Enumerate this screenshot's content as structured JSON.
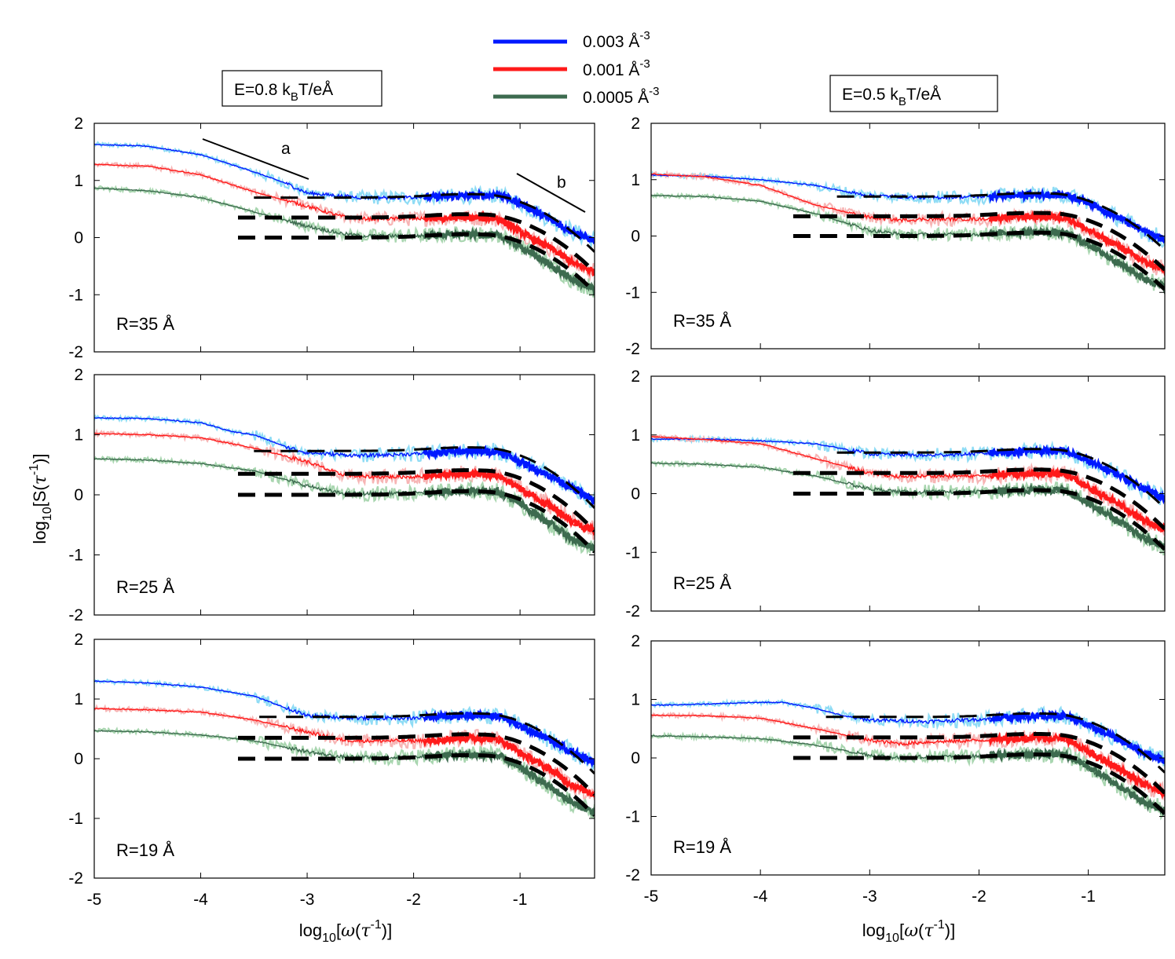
{
  "figure": {
    "ylabel": "log10[S(τ-1)]",
    "ylabel_base": "log",
    "ylabel_sub": "10",
    "ylabel_rest_a": "[S(",
    "ylabel_tau": "τ",
    "ylabel_sup": "-1",
    "ylabel_rest_b": ")]",
    "xlabel": "log10[ω(τ-1)]",
    "xlabel_base": "log",
    "xlabel_sub": "10",
    "xlabel_rest_a": "[",
    "xlabel_omega": "ω",
    "xlabel_paren": "(",
    "xlabel_tau": "τ",
    "xlabel_sup": "-1",
    "xlabel_rest_b": ")]",
    "columns": [
      {
        "field_pre": "E=0.8 k",
        "field_sub": "B",
        "field_post": "T/eÅ"
      },
      {
        "field_pre": "E=0.5 k",
        "field_sub": "B",
        "field_post": "T/eÅ"
      }
    ],
    "annotations": {
      "a": "a",
      "b": "b"
    }
  },
  "legend": [
    {
      "label": "0.003 Å",
      "sup": "-3",
      "color": "#0019ff"
    },
    {
      "label": "0.001 Å",
      "sup": "-3",
      "color": "#ff1a1a"
    },
    {
      "label": "0.0005 Å",
      "sup": "-3",
      "color": "#3d6b4f"
    }
  ],
  "colors": {
    "blue": "#0019ff",
    "blue_light": "#8fdcf5",
    "red": "#ff1a1a",
    "red_light": "#f7b5b5",
    "green": "#3d6b4f",
    "green_light": "#a9d6b0",
    "fit": "#000000"
  },
  "chart_data": [
    {
      "type": "line",
      "panel": "E=0.8, R=35 Å",
      "label": "R=35 Å",
      "xlim": [
        -5,
        -0.3
      ],
      "ylim": [
        -2,
        2
      ],
      "xticks": [
        -5,
        -4,
        -3,
        -2,
        -1
      ],
      "yticks": [
        -2,
        -1,
        0,
        1,
        2
      ],
      "series": [
        {
          "name": "0.003 Å-3",
          "x": [
            -5,
            -4.5,
            -4,
            -3.5,
            -3.2,
            -3.0,
            -2.5,
            -2,
            -1.5,
            -1.2,
            -1.0,
            -0.7,
            -0.5,
            -0.3
          ],
          "y": [
            1.63,
            1.6,
            1.45,
            1.15,
            0.95,
            0.78,
            0.7,
            0.7,
            0.73,
            0.75,
            0.6,
            0.3,
            0.1,
            -0.05
          ],
          "fit_y": 0.7,
          "fit_from": -3.5
        },
        {
          "name": "0.001 Å-3",
          "x": [
            -5,
            -4.5,
            -4,
            -3.5,
            -3.0,
            -2.7,
            -2.5,
            -2,
            -1.5,
            -1.2,
            -1.0,
            -0.7,
            -0.5,
            -0.3
          ],
          "y": [
            1.28,
            1.25,
            1.1,
            0.8,
            0.55,
            0.38,
            0.33,
            0.33,
            0.35,
            0.33,
            0.1,
            -0.2,
            -0.45,
            -0.6
          ],
          "fit_y": 0.35,
          "fit_from": -3.65
        },
        {
          "name": "0.0005 Å-3",
          "x": [
            -5,
            -4.5,
            -4,
            -3.5,
            -3.0,
            -2.7,
            -2.5,
            -2,
            -1.5,
            -1.2,
            -1.0,
            -0.7,
            -0.5,
            -0.3
          ],
          "y": [
            0.87,
            0.82,
            0.7,
            0.45,
            0.2,
            0.08,
            0.03,
            0.03,
            0.06,
            0.04,
            -0.15,
            -0.5,
            -0.75,
            -0.9
          ],
          "fit_y": 0.0,
          "fit_from": -3.65
        }
      ]
    },
    {
      "type": "line",
      "panel": "E=0.5, R=35 Å",
      "label": "R=35 Å",
      "xlim": [
        -5,
        -0.3
      ],
      "ylim": [
        -2,
        2
      ],
      "xticks": [
        -5,
        -4,
        -3,
        -2,
        -1
      ],
      "yticks": [
        -2,
        -1,
        0,
        1,
        2
      ],
      "series": [
        {
          "name": "0.003 Å-3",
          "x": [
            -5,
            -4.5,
            -4,
            -3.5,
            -3.2,
            -3.0,
            -2.5,
            -2,
            -1.5,
            -1.2,
            -1.0,
            -0.7,
            -0.5,
            -0.3
          ],
          "y": [
            1.08,
            1.06,
            1.0,
            0.9,
            0.78,
            0.72,
            0.68,
            0.7,
            0.73,
            0.73,
            0.6,
            0.3,
            0.1,
            -0.07
          ],
          "fit_y": 0.7,
          "fit_from": -3.3
        },
        {
          "name": "0.001 Å-3",
          "x": [
            -5,
            -4.5,
            -4,
            -3.5,
            -3.0,
            -2.7,
            -2.5,
            -2,
            -1.5,
            -1.2,
            -1.0,
            -0.7,
            -0.5,
            -0.3
          ],
          "y": [
            1.1,
            1.05,
            0.9,
            0.55,
            0.33,
            0.28,
            0.3,
            0.3,
            0.35,
            0.33,
            0.1,
            -0.2,
            -0.45,
            -0.6
          ],
          "fit_y": 0.35,
          "fit_from": -3.7
        },
        {
          "name": "0.0005 Å-3",
          "x": [
            -5,
            -4.5,
            -4,
            -3.5,
            -3.0,
            -2.7,
            -2.5,
            -2,
            -1.5,
            -1.2,
            -1.0,
            -0.7,
            -0.5,
            -0.3
          ],
          "y": [
            0.72,
            0.7,
            0.62,
            0.4,
            0.1,
            0.03,
            0.03,
            0.03,
            0.07,
            0.05,
            -0.15,
            -0.5,
            -0.75,
            -0.9
          ],
          "fit_y": 0.0,
          "fit_from": -3.7
        }
      ]
    },
    {
      "type": "line",
      "panel": "E=0.8, R=25 Å",
      "label": "R=25 Å",
      "xlim": [
        -5,
        -0.3
      ],
      "ylim": [
        -2,
        2
      ],
      "xticks": [
        -5,
        -4,
        -3,
        -2,
        -1
      ],
      "yticks": [
        -2,
        -1,
        0,
        1,
        2
      ],
      "series": [
        {
          "name": "0.003 Å-3",
          "x": [
            -5,
            -4.5,
            -4,
            -3.7,
            -3.5,
            -3.2,
            -3.0,
            -2.5,
            -2,
            -1.5,
            -1.2,
            -1.0,
            -0.7,
            -0.5,
            -0.3
          ],
          "y": [
            1.28,
            1.27,
            1.2,
            1.05,
            1.0,
            0.8,
            0.7,
            0.65,
            0.68,
            0.73,
            0.72,
            0.55,
            0.3,
            0.1,
            -0.1
          ],
          "fit_y": 0.73,
          "fit_from": -3.5
        },
        {
          "name": "0.001 Å-3",
          "x": [
            -5,
            -4.5,
            -4,
            -3.5,
            -3.0,
            -2.7,
            -2.5,
            -2,
            -1.5,
            -1.2,
            -1.0,
            -0.7,
            -0.5,
            -0.3
          ],
          "y": [
            1.02,
            1.0,
            0.95,
            0.78,
            0.55,
            0.35,
            0.3,
            0.3,
            0.35,
            0.33,
            0.1,
            -0.2,
            -0.45,
            -0.6
          ],
          "fit_y": 0.35,
          "fit_from": -3.65
        },
        {
          "name": "0.0005 Å-3",
          "x": [
            -5,
            -4.5,
            -4,
            -3.5,
            -3.0,
            -2.7,
            -2.5,
            -2,
            -1.5,
            -1.2,
            -1.0,
            -0.7,
            -0.5,
            -0.3
          ],
          "y": [
            0.6,
            0.58,
            0.52,
            0.4,
            0.15,
            0.03,
            0.02,
            0.03,
            0.07,
            0.05,
            -0.15,
            -0.5,
            -0.75,
            -0.9
          ],
          "fit_y": 0.0,
          "fit_from": -3.65
        }
      ]
    },
    {
      "type": "line",
      "panel": "E=0.5, R=25 Å",
      "label": "R=25 Å",
      "xlim": [
        -5,
        -0.3
      ],
      "ylim": [
        -2,
        2
      ],
      "xticks": [
        -5,
        -4,
        -3,
        -2,
        -1
      ],
      "yticks": [
        -2,
        -1,
        0,
        1,
        2
      ],
      "series": [
        {
          "name": "0.003 Å-3",
          "x": [
            -5,
            -4.5,
            -4,
            -3.5,
            -3.2,
            -3.0,
            -2.5,
            -2,
            -1.5,
            -1.2,
            -1.0,
            -0.7,
            -0.5,
            -0.3
          ],
          "y": [
            0.93,
            0.93,
            0.9,
            0.85,
            0.75,
            0.68,
            0.65,
            0.68,
            0.73,
            0.72,
            0.55,
            0.3,
            0.1,
            -0.08
          ],
          "fit_y": 0.7,
          "fit_from": -3.3
        },
        {
          "name": "0.001 Å-3",
          "x": [
            -5,
            -4.5,
            -4,
            -3.5,
            -3.0,
            -2.7,
            -2.5,
            -2,
            -1.5,
            -1.2,
            -1.0,
            -0.7,
            -0.5,
            -0.3
          ],
          "y": [
            0.97,
            0.92,
            0.85,
            0.6,
            0.35,
            0.28,
            0.3,
            0.3,
            0.35,
            0.33,
            0.1,
            -0.2,
            -0.45,
            -0.6
          ],
          "fit_y": 0.35,
          "fit_from": -3.7
        },
        {
          "name": "0.0005 Å-3",
          "x": [
            -5,
            -4.5,
            -4,
            -3.5,
            -3.0,
            -2.7,
            -2.5,
            -2,
            -1.5,
            -1.2,
            -1.0,
            -0.7,
            -0.5,
            -0.3
          ],
          "y": [
            0.52,
            0.5,
            0.45,
            0.3,
            0.08,
            0.03,
            0.03,
            0.03,
            0.07,
            0.05,
            -0.15,
            -0.5,
            -0.75,
            -0.9
          ],
          "fit_y": 0.0,
          "fit_from": -3.7
        }
      ]
    },
    {
      "type": "line",
      "panel": "E=0.8, R=19 Å",
      "label": "R=19 Å",
      "xlim": [
        -5,
        -0.3
      ],
      "ylim": [
        -2,
        2
      ],
      "xticks": [
        -5,
        -4,
        -3,
        -2,
        -1
      ],
      "yticks": [
        -2,
        -1,
        0,
        1,
        2
      ],
      "series": [
        {
          "name": "0.003 Å-3",
          "x": [
            -5,
            -4.5,
            -4,
            -3.5,
            -3.2,
            -3.0,
            -2.5,
            -2,
            -1.5,
            -1.2,
            -1.0,
            -0.7,
            -0.5,
            -0.3
          ],
          "y": [
            1.3,
            1.27,
            1.2,
            1.05,
            0.85,
            0.72,
            0.68,
            0.68,
            0.73,
            0.72,
            0.55,
            0.3,
            0.1,
            -0.05
          ],
          "fit_y": 0.7,
          "fit_from": -3.45
        },
        {
          "name": "0.001 Å-3",
          "x": [
            -5,
            -4.5,
            -4,
            -3.5,
            -3.0,
            -2.7,
            -2.5,
            -2,
            -1.5,
            -1.2,
            -1.0,
            -0.7,
            -0.5,
            -0.3
          ],
          "y": [
            0.84,
            0.82,
            0.78,
            0.65,
            0.45,
            0.32,
            0.3,
            0.3,
            0.35,
            0.33,
            0.1,
            -0.2,
            -0.45,
            -0.6
          ],
          "fit_y": 0.35,
          "fit_from": -3.65
        },
        {
          "name": "0.0005 Å-3",
          "x": [
            -5,
            -4.5,
            -4,
            -3.5,
            -3.0,
            -2.7,
            -2.5,
            -2,
            -1.5,
            -1.2,
            -1.0,
            -0.7,
            -0.5,
            -0.3
          ],
          "y": [
            0.47,
            0.45,
            0.4,
            0.3,
            0.12,
            0.03,
            0.02,
            0.03,
            0.07,
            0.05,
            -0.15,
            -0.5,
            -0.75,
            -0.9
          ],
          "fit_y": 0.0,
          "fit_from": -3.65
        }
      ]
    },
    {
      "type": "line",
      "panel": "E=0.5, R=19 Å",
      "label": "R=19 Å",
      "xlim": [
        -5,
        -0.3
      ],
      "ylim": [
        -2,
        2
      ],
      "xticks": [
        -5,
        -4,
        -3,
        -2,
        -1
      ],
      "yticks": [
        -2,
        -1,
        0,
        1,
        2
      ],
      "series": [
        {
          "name": "0.003 Å-3",
          "x": [
            -5,
            -4.5,
            -4,
            -3.8,
            -3.5,
            -3.2,
            -3.0,
            -2.5,
            -2,
            -1.5,
            -1.2,
            -1.0,
            -0.7,
            -0.5,
            -0.3
          ],
          "y": [
            0.9,
            0.92,
            0.95,
            0.95,
            0.85,
            0.7,
            0.65,
            0.62,
            0.66,
            0.72,
            0.72,
            0.55,
            0.3,
            0.1,
            -0.05
          ],
          "fit_y": 0.7,
          "fit_from": -3.4
        },
        {
          "name": "0.001 Å-3",
          "x": [
            -5,
            -4.5,
            -4,
            -3.5,
            -3.0,
            -2.7,
            -2.5,
            -2,
            -1.5,
            -1.2,
            -1.0,
            -0.7,
            -0.5,
            -0.3
          ],
          "y": [
            0.73,
            0.72,
            0.68,
            0.5,
            0.3,
            0.24,
            0.27,
            0.3,
            0.35,
            0.33,
            0.1,
            -0.2,
            -0.45,
            -0.6
          ],
          "fit_y": 0.35,
          "fit_from": -3.7
        },
        {
          "name": "0.0005 Å-3",
          "x": [
            -5,
            -4.5,
            -4,
            -3.5,
            -3.0,
            -2.7,
            -2.5,
            -2,
            -1.5,
            -1.2,
            -1.0,
            -0.7,
            -0.5,
            -0.3
          ],
          "y": [
            0.38,
            0.36,
            0.33,
            0.22,
            0.05,
            0.0,
            0.02,
            0.03,
            0.07,
            0.05,
            -0.15,
            -0.5,
            -0.75,
            -0.9
          ],
          "fit_y": 0.0,
          "fit_from": -3.7
        }
      ]
    }
  ]
}
